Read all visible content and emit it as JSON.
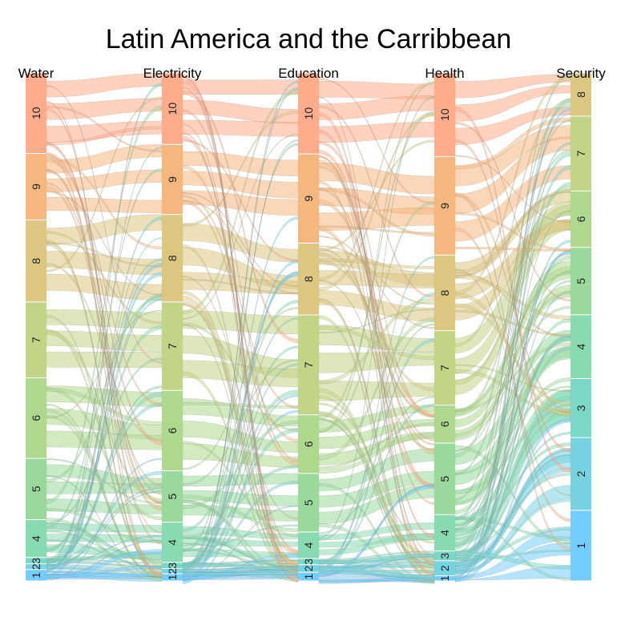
{
  "chart_data": {
    "type": "parallel-categories",
    "title": "Latin America and the Carribbean",
    "dimensions": [
      "Water",
      "Electricity",
      "Education",
      "Health",
      "Security"
    ],
    "categories": {
      "Water": [
        "1",
        "2",
        "3",
        "4",
        "5",
        "6",
        "7",
        "8",
        "9",
        "10"
      ],
      "Electricity": [
        "1",
        "2",
        "3",
        "4",
        "5",
        "6",
        "7",
        "8",
        "9",
        "10"
      ],
      "Education": [
        "1",
        "2",
        "3",
        "4",
        "5",
        "6",
        "7",
        "8",
        "9",
        "10"
      ],
      "Health": [
        "1",
        "2",
        "3",
        "4",
        "5",
        "6",
        "7",
        "8",
        "9",
        "10"
      ],
      "Security": [
        "1",
        "2",
        "3",
        "4",
        "5",
        "6",
        "7",
        "8"
      ]
    },
    "category_shares": {
      "Water": [
        0.022,
        0.011,
        0.012,
        0.073,
        0.118,
        0.155,
        0.146,
        0.158,
        0.128,
        0.155
      ],
      "Electricity": [
        0.014,
        0.01,
        0.012,
        0.078,
        0.1,
        0.156,
        0.172,
        0.17,
        0.136,
        0.139
      ],
      "Education": [
        0.017,
        0.015,
        0.012,
        0.052,
        0.115,
        0.115,
        0.196,
        0.141,
        0.175,
        0.159
      ],
      "Health": [
        0.009,
        0.026,
        0.017,
        0.063,
        0.124,
        0.066,
        0.129,
        0.131,
        0.171,
        0.145
      ],
      "Security": [
        0.134,
        0.138,
        0.112,
        0.121,
        0.128,
        0.107,
        0.142,
        0.082
      ]
    },
    "colors": {
      "1": "#74cdff",
      "2": "#77d3e2",
      "3": "#7bd8c9",
      "4": "#88dab0",
      "5": "#99d99b",
      "6": "#aed88e",
      "7": "#c2d485",
      "8": "#dbc77f",
      "9": "#f5b77e",
      "10": "#ffac8a"
    },
    "grid": false,
    "legend": "none"
  }
}
